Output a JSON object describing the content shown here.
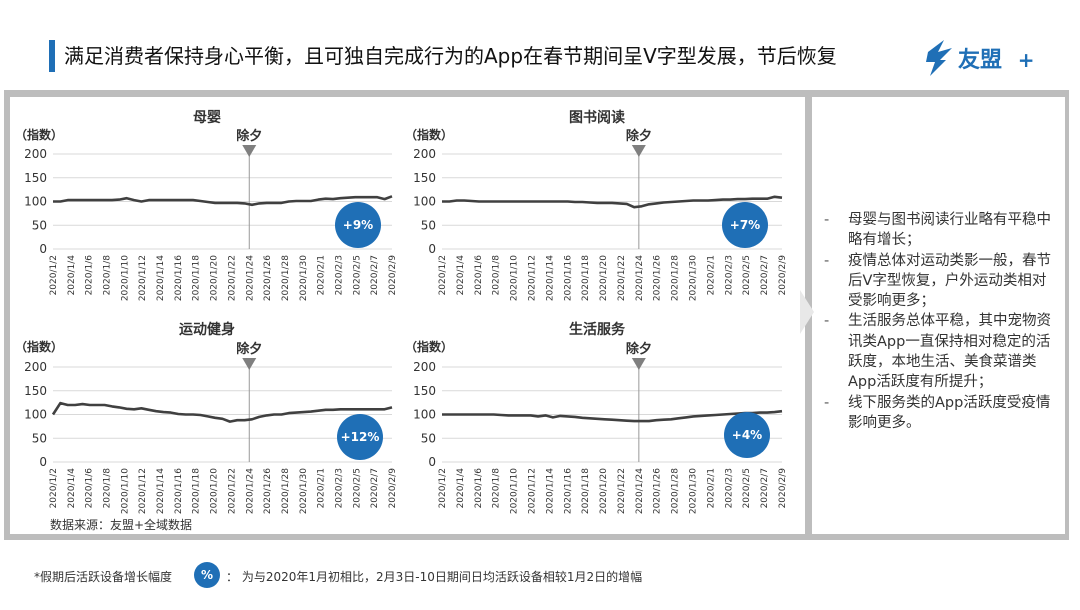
{
  "header": {
    "title": "满足消费者保持身心平衡，且可独自完成行为的App在春节期间呈V字型发展，节后恢复",
    "logo_text": "友盟",
    "logo_plus": "+"
  },
  "notes": [
    "母婴与图书阅读行业略有平稳中略有增长；",
    "疫情总体对运动类影一般，春节后V字型恢复，户外运动类相对受影响更多；",
    "生活服务总体平稳，其中宠物资讯类App一直保持相对稳定的活跃度，本地生活、美食菜谱类App活跃度有所提升；",
    "线下服务类的App活跃度受疫情影响更多。"
  ],
  "note_dash": "-",
  "source": "数据来源：友盟+全域数据",
  "footer": {
    "left": "*假期后活跃设备增长幅度",
    "badge": "%",
    "right": "：  为与2020年1月初相比，2月3日-10日期间日均活跃设备相较1月2日的增幅"
  },
  "colors": {
    "accent": "#1f6fb6",
    "line": "#404040",
    "grid": "#d9d9d9",
    "marker": "#7f7f7f"
  },
  "chart_data": [
    {
      "type": "line",
      "title": "母婴",
      "ylabel": "（指数）",
      "ylim": [
        0,
        200
      ],
      "yticks": [
        0,
        50,
        100,
        150,
        200
      ],
      "xticks": [
        "2020/1/2",
        "2020/1/4",
        "2020/1/6",
        "2020/1/8",
        "2020/1/10",
        "2020/1/12",
        "2020/1/14",
        "2020/1/16",
        "2020/1/18",
        "2020/1/20",
        "2020/1/22",
        "2020/1/24",
        "2020/1/26",
        "2020/1/28",
        "2020/1/30",
        "2020/2/1",
        "2020/2/3",
        "2020/2/5",
        "2020/2/7",
        "2020/2/9"
      ],
      "annotation": {
        "label": "除夕",
        "x": "2020/1/24"
      },
      "badge": "+9%",
      "values": [
        100,
        100,
        103,
        103,
        103,
        103,
        103,
        103,
        103,
        104,
        107,
        103,
        100,
        103,
        103,
        103,
        103,
        103,
        103,
        103,
        101,
        99,
        97,
        97,
        97,
        97,
        96,
        93,
        96,
        97,
        97,
        97,
        100,
        101,
        101,
        101,
        104,
        106,
        105,
        107,
        108,
        109,
        109,
        109,
        109,
        105,
        111
      ]
    },
    {
      "type": "line",
      "title": "图书阅读",
      "ylabel": "（指数）",
      "ylim": [
        0,
        200
      ],
      "yticks": [
        0,
        50,
        100,
        150,
        200
      ],
      "xticks": [
        "2020/1/2",
        "2020/1/4",
        "2020/1/6",
        "2020/1/8",
        "2020/1/10",
        "2020/1/12",
        "2020/1/14",
        "2020/1/16",
        "2020/1/18",
        "2020/1/20",
        "2020/1/22",
        "2020/1/24",
        "2020/1/26",
        "2020/1/28",
        "2020/1/30",
        "2020/2/1",
        "2020/2/3",
        "2020/2/5",
        "2020/2/7",
        "2020/2/9"
      ],
      "annotation": {
        "label": "除夕",
        "x": "2020/1/24"
      },
      "badge": "+7%",
      "values": [
        100,
        100,
        102,
        102,
        101,
        100,
        100,
        100,
        100,
        100,
        100,
        100,
        100,
        100,
        100,
        100,
        100,
        100,
        99,
        99,
        98,
        97,
        97,
        97,
        96,
        95,
        88,
        90,
        94,
        96,
        98,
        99,
        100,
        101,
        102,
        102,
        102,
        103,
        104,
        104,
        105,
        105,
        106,
        106,
        106,
        110,
        108
      ]
    },
    {
      "type": "line",
      "title": "运动健身",
      "ylabel": "（指数）",
      "ylim": [
        0,
        200
      ],
      "yticks": [
        0,
        50,
        100,
        150,
        200
      ],
      "xticks": [
        "2020/1/2",
        "2020/1/4",
        "2020/1/6",
        "2020/1/8",
        "2020/1/10",
        "2020/1/12",
        "2020/1/14",
        "2020/1/16",
        "2020/1/18",
        "2020/1/20",
        "2020/1/22",
        "2020/1/24",
        "2020/1/26",
        "2020/1/28",
        "2020/1/30",
        "2020/2/1",
        "2020/2/3",
        "2020/2/5",
        "2020/2/7",
        "2020/2/9"
      ],
      "annotation": {
        "label": "除夕",
        "x": "2020/1/24"
      },
      "badge": "+12%",
      "values": [
        100,
        124,
        120,
        120,
        122,
        120,
        120,
        120,
        117,
        115,
        112,
        111,
        113,
        110,
        107,
        105,
        104,
        101,
        100,
        100,
        99,
        96,
        93,
        91,
        85,
        88,
        88,
        90,
        95,
        98,
        100,
        100,
        103,
        104,
        105,
        106,
        108,
        110,
        110,
        111,
        111,
        111,
        111,
        111,
        111,
        111,
        115
      ]
    },
    {
      "type": "line",
      "title": "生活服务",
      "ylabel": "（指数）",
      "ylim": [
        0,
        200
      ],
      "yticks": [
        0,
        50,
        100,
        150,
        200
      ],
      "xticks": [
        "2020/1/2",
        "2020/1/4",
        "2020/1/6",
        "2020/1/8",
        "2020/1/10",
        "2020/1/12",
        "2020/1/14",
        "2020/1/16",
        "2020/1/18",
        "2020/1/20",
        "2020/1/22",
        "2020/1/24",
        "2020/1/26",
        "2020/1/28",
        "2020/1/30",
        "2020/2/1",
        "2020/2/3",
        "2020/2/5",
        "2020/2/7",
        "2020/2/9"
      ],
      "annotation": {
        "label": "除夕",
        "x": "2020/1/24"
      },
      "badge": "+4%",
      "values": [
        100,
        100,
        100,
        100,
        100,
        100,
        100,
        100,
        99,
        98,
        98,
        98,
        98,
        96,
        98,
        94,
        97,
        96,
        95,
        93,
        92,
        91,
        90,
        89,
        88,
        87,
        86,
        86,
        86,
        88,
        89,
        90,
        92,
        94,
        96,
        97,
        98,
        99,
        100,
        101,
        102,
        103,
        103,
        104,
        104,
        105,
        107
      ]
    }
  ]
}
